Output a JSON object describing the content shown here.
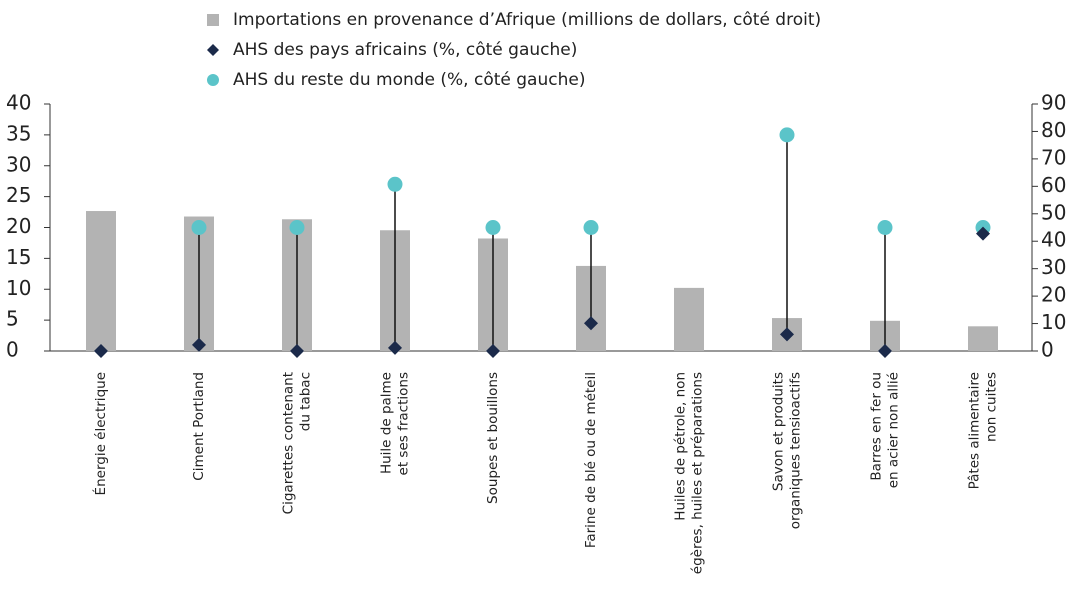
{
  "chart_data": {
    "type": "bar",
    "categories": [
      [
        "Énergie électrique"
      ],
      [
        "Ciment Portland"
      ],
      [
        "Cigarettes contenant",
        "du tabac"
      ],
      [
        "Huile de palme",
        "et ses fractions"
      ],
      [
        "Soupes et bouillons"
      ],
      [
        "Farine de blé ou de méteil"
      ],
      [
        "Huiles de pétrole, non",
        "égères, huiles et préparations"
      ],
      [
        "Savon et produits",
        "organiques tensioactifs"
      ],
      [
        "Barres en fer ou",
        "en acier non allié"
      ],
      [
        "Pâtes alimentaire",
        "non cuites"
      ]
    ],
    "series": [
      {
        "name": "Importations en provenance d’Afrique (millions de dollars, côté droit)",
        "type": "bar",
        "axis": "y2",
        "color": "#b3b3b3",
        "values": [
          51,
          49,
          48,
          44,
          41,
          31,
          23,
          12,
          11,
          9
        ]
      },
      {
        "name": "AHS des pays africains (%, côté gauche)",
        "type": "diamond",
        "color": "#1b2a4a",
        "values": [
          0,
          1,
          0,
          0.5,
          0,
          4.5,
          null,
          2.7,
          0,
          19
        ]
      },
      {
        "name": "AHS du reste du monde (%, côté gauche)",
        "type": "circle",
        "color": "#5bc4c9",
        "values": [
          null,
          20,
          20,
          27,
          20,
          20,
          null,
          35,
          20,
          20
        ]
      }
    ],
    "ylim": [
      0,
      40
    ],
    "yticks": [
      0,
      5,
      10,
      15,
      20,
      25,
      30,
      35,
      40
    ],
    "y2lim": [
      0,
      90
    ],
    "y2ticks": [
      0,
      10,
      20,
      30,
      40,
      50,
      60,
      70,
      80,
      90
    ]
  }
}
